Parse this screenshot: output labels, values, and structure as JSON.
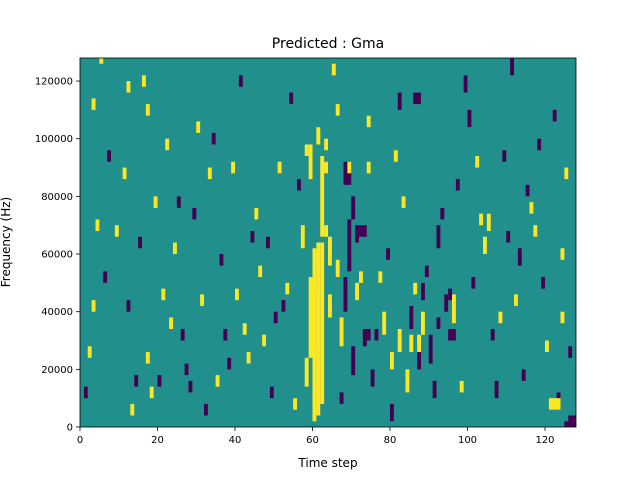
{
  "chart_data": {
    "type": "heatmap",
    "title": "Predicted : Gma",
    "xlabel": "Time step",
    "ylabel": "Frequency (Hz)",
    "xlim": [
      0,
      128
    ],
    "ylim": [
      0,
      128000
    ],
    "x_ticks": [
      0,
      20,
      40,
      60,
      80,
      100,
      120
    ],
    "y_ticks": [
      0,
      20000,
      40000,
      60000,
      80000,
      100000,
      120000
    ],
    "grid": false,
    "legend": "none",
    "colormap": "viridis (3 levels)",
    "background_value": 0,
    "colors": {
      "low": "#440154",
      "mid": "#21908c",
      "high": "#fde725"
    },
    "cells": [
      [
        60,
        2000,
        1,
        60000,
        1
      ],
      [
        61,
        4000,
        1,
        60000,
        1
      ],
      [
        62,
        8000,
        1,
        56000,
        1
      ],
      [
        59,
        24000,
        1,
        28000,
        1
      ],
      [
        58,
        14000,
        1,
        10000,
        1
      ],
      [
        62,
        66000,
        1,
        28000,
        1
      ],
      [
        57,
        62000,
        1,
        8000,
        1
      ],
      [
        63,
        66000,
        1,
        4000,
        1
      ],
      [
        64,
        56000,
        1,
        10000,
        1
      ],
      [
        59,
        86000,
        1,
        12000,
        1
      ],
      [
        61,
        98000,
        1,
        6000,
        1
      ],
      [
        63,
        96000,
        1,
        4000,
        1
      ],
      [
        64,
        38000,
        1,
        8000,
        1
      ],
      [
        61,
        100000,
        1,
        2000,
        1
      ],
      [
        63,
        88000,
        1,
        4000,
        1
      ],
      [
        68,
        84000,
        2,
        8000,
        -1
      ],
      [
        70,
        72000,
        1,
        8000,
        -1
      ],
      [
        69,
        54000,
        1,
        18000,
        -1
      ],
      [
        68,
        40000,
        1,
        12000,
        -1
      ],
      [
        71,
        64000,
        1,
        6000,
        -1
      ],
      [
        70,
        18000,
        1,
        10000,
        -1
      ],
      [
        67,
        8000,
        1,
        4000,
        -1
      ],
      [
        73,
        28000,
        1,
        6000,
        -1
      ],
      [
        75,
        14000,
        1,
        6000,
        -1
      ],
      [
        76,
        30000,
        1,
        4000,
        -1
      ],
      [
        80,
        2000,
        1,
        6000,
        -1
      ],
      [
        85,
        34000,
        1,
        8000,
        -1
      ],
      [
        87,
        20000,
        1,
        8000,
        -1
      ],
      [
        88,
        44000,
        1,
        6000,
        -1
      ],
      [
        89,
        52000,
        1,
        4000,
        -1
      ],
      [
        91,
        10000,
        1,
        6000,
        -1
      ],
      [
        90,
        22000,
        1,
        10000,
        -1
      ],
      [
        92,
        34000,
        1,
        4000,
        -1
      ],
      [
        92,
        62000,
        1,
        8000,
        -1
      ],
      [
        94,
        40000,
        1,
        6000,
        -1
      ],
      [
        95,
        44000,
        1,
        4000,
        -1
      ],
      [
        95,
        30000,
        2,
        4000,
        -1
      ],
      [
        99,
        116000,
        1,
        6000,
        -1
      ],
      [
        100,
        104000,
        1,
        6000,
        -1
      ],
      [
        107,
        10000,
        1,
        6000,
        -1
      ],
      [
        111,
        122000,
        1,
        6000,
        -1
      ],
      [
        113,
        56000,
        1,
        6000,
        -1
      ],
      [
        118,
        96000,
        1,
        4000,
        -1
      ],
      [
        123,
        6000,
        1,
        6000,
        -1
      ],
      [
        125,
        0,
        3,
        2000,
        -1
      ],
      [
        126,
        0,
        2,
        4000,
        -1
      ],
      [
        86,
        112000,
        2,
        4000,
        -1
      ],
      [
        72,
        66000,
        2,
        4000,
        -1
      ],
      [
        73,
        30000,
        2,
        4000,
        -1
      ],
      [
        82,
        110000,
        1,
        6000,
        -1
      ],
      [
        71,
        44000,
        1,
        6000,
        1
      ],
      [
        72,
        50000,
        1,
        4000,
        1
      ],
      [
        69,
        88000,
        1,
        4000,
        1
      ],
      [
        74,
        88000,
        1,
        4000,
        1
      ],
      [
        66,
        52000,
        1,
        6000,
        1
      ],
      [
        67,
        28000,
        1,
        10000,
        1
      ],
      [
        78,
        32000,
        1,
        8000,
        1
      ],
      [
        80,
        20000,
        1,
        6000,
        1
      ],
      [
        82,
        26000,
        1,
        8000,
        1
      ],
      [
        85,
        26000,
        1,
        6000,
        1
      ],
      [
        87,
        26000,
        1,
        6000,
        1
      ],
      [
        88,
        32000,
        1,
        8000,
        1
      ],
      [
        96,
        36000,
        1,
        10000,
        1
      ],
      [
        84,
        12000,
        1,
        8000,
        1
      ],
      [
        103,
        70000,
        1,
        4000,
        1
      ],
      [
        104,
        60000,
        1,
        6000,
        1
      ],
      [
        105,
        68000,
        1,
        6000,
        1
      ],
      [
        121,
        6000,
        3,
        4000,
        1
      ],
      [
        124,
        36000,
        1,
        4000,
        1
      ],
      [
        1,
        10000,
        1,
        4000,
        -1
      ],
      [
        2,
        24000,
        1,
        4000,
        1
      ],
      [
        4,
        68000,
        1,
        4000,
        1
      ],
      [
        5,
        126000,
        1,
        2000,
        1
      ],
      [
        3,
        110000,
        1,
        4000,
        1
      ],
      [
        7,
        92000,
        1,
        4000,
        -1
      ],
      [
        12,
        116000,
        1,
        4000,
        1
      ],
      [
        12,
        40000,
        1,
        4000,
        -1
      ],
      [
        15,
        62000,
        1,
        4000,
        -1
      ],
      [
        17,
        22000,
        1,
        4000,
        1
      ],
      [
        18,
        10000,
        1,
        4000,
        1
      ],
      [
        20,
        14000,
        1,
        4000,
        -1
      ],
      [
        23,
        34000,
        1,
        4000,
        1
      ],
      [
        25,
        76000,
        1,
        4000,
        -1
      ],
      [
        28,
        12000,
        1,
        4000,
        -1
      ],
      [
        30,
        102000,
        1,
        4000,
        1
      ],
      [
        33,
        86000,
        1,
        4000,
        1
      ],
      [
        35,
        14000,
        1,
        4000,
        1
      ],
      [
        37,
        30000,
        1,
        4000,
        -1
      ],
      [
        40,
        44000,
        1,
        4000,
        1
      ],
      [
        43,
        22000,
        1,
        4000,
        1
      ],
      [
        45,
        72000,
        1,
        4000,
        1
      ],
      [
        48,
        62000,
        1,
        4000,
        -1
      ],
      [
        50,
        36000,
        1,
        4000,
        -1
      ],
      [
        52,
        40000,
        1,
        4000,
        -1
      ],
      [
        54,
        112000,
        1,
        4000,
        -1
      ],
      [
        56,
        82000,
        1,
        4000,
        -1
      ],
      [
        74,
        104000,
        1,
        4000,
        1
      ],
      [
        77,
        50000,
        1,
        4000,
        1
      ],
      [
        79,
        58000,
        1,
        4000,
        -1
      ],
      [
        83,
        76000,
        1,
        4000,
        1
      ],
      [
        97,
        82000,
        1,
        4000,
        -1
      ],
      [
        102,
        90000,
        1,
        4000,
        1
      ],
      [
        108,
        36000,
        1,
        4000,
        1
      ],
      [
        110,
        64000,
        1,
        4000,
        -1
      ],
      [
        115,
        80000,
        1,
        4000,
        -1
      ],
      [
        117,
        66000,
        1,
        4000,
        1
      ],
      [
        119,
        48000,
        1,
        4000,
        -1
      ],
      [
        122,
        106000,
        1,
        4000,
        -1
      ],
      [
        124,
        58000,
        1,
        4000,
        1
      ],
      [
        126,
        24000,
        1,
        4000,
        -1
      ],
      [
        13,
        4000,
        1,
        4000,
        1
      ],
      [
        17,
        108000,
        1,
        4000,
        1
      ],
      [
        19,
        76000,
        1,
        4000,
        1
      ],
      [
        22,
        96000,
        1,
        4000,
        1
      ],
      [
        27,
        18000,
        1,
        4000,
        -1
      ],
      [
        31,
        42000,
        1,
        4000,
        1
      ],
      [
        36,
        56000,
        1,
        4000,
        -1
      ],
      [
        39,
        88000,
        1,
        4000,
        1
      ],
      [
        44,
        64000,
        1,
        4000,
        -1
      ],
      [
        47,
        28000,
        1,
        4000,
        1
      ],
      [
        53,
        46000,
        1,
        4000,
        1
      ],
      [
        58,
        94000,
        1,
        4000,
        1
      ],
      [
        65,
        122000,
        1,
        4000,
        1
      ],
      [
        66,
        108000,
        1,
        4000,
        1
      ],
      [
        81,
        92000,
        1,
        4000,
        1
      ],
      [
        86,
        46000,
        1,
        4000,
        1
      ],
      [
        93,
        72000,
        1,
        4000,
        -1
      ],
      [
        98,
        12000,
        1,
        4000,
        1
      ],
      [
        101,
        48000,
        1,
        4000,
        -1
      ],
      [
        106,
        30000,
        1,
        4000,
        -1
      ],
      [
        109,
        92000,
        1,
        4000,
        -1
      ],
      [
        112,
        42000,
        1,
        4000,
        1
      ],
      [
        114,
        16000,
        1,
        4000,
        -1
      ],
      [
        116,
        74000,
        1,
        4000,
        1
      ],
      [
        120,
        26000,
        1,
        4000,
        1
      ],
      [
        125,
        86000,
        1,
        4000,
        1
      ],
      [
        3,
        40000,
        1,
        4000,
        1
      ],
      [
        6,
        50000,
        1,
        4000,
        -1
      ],
      [
        9,
        66000,
        1,
        4000,
        1
      ],
      [
        11,
        86000,
        1,
        4000,
        1
      ],
      [
        14,
        14000,
        1,
        4000,
        -1
      ],
      [
        16,
        118000,
        1,
        4000,
        1
      ],
      [
        21,
        44000,
        1,
        4000,
        1
      ],
      [
        24,
        60000,
        1,
        4000,
        1
      ],
      [
        26,
        30000,
        1,
        4000,
        -1
      ],
      [
        29,
        72000,
        1,
        4000,
        -1
      ],
      [
        32,
        4000,
        1,
        4000,
        -1
      ],
      [
        34,
        98000,
        1,
        4000,
        -1
      ],
      [
        38,
        20000,
        1,
        4000,
        -1
      ],
      [
        41,
        118000,
        1,
        4000,
        -1
      ],
      [
        42,
        32000,
        1,
        4000,
        1
      ],
      [
        46,
        52000,
        1,
        4000,
        1
      ],
      [
        49,
        10000,
        1,
        4000,
        -1
      ],
      [
        51,
        88000,
        1,
        4000,
        1
      ],
      [
        55,
        6000,
        1,
        4000,
        1
      ]
    ]
  }
}
